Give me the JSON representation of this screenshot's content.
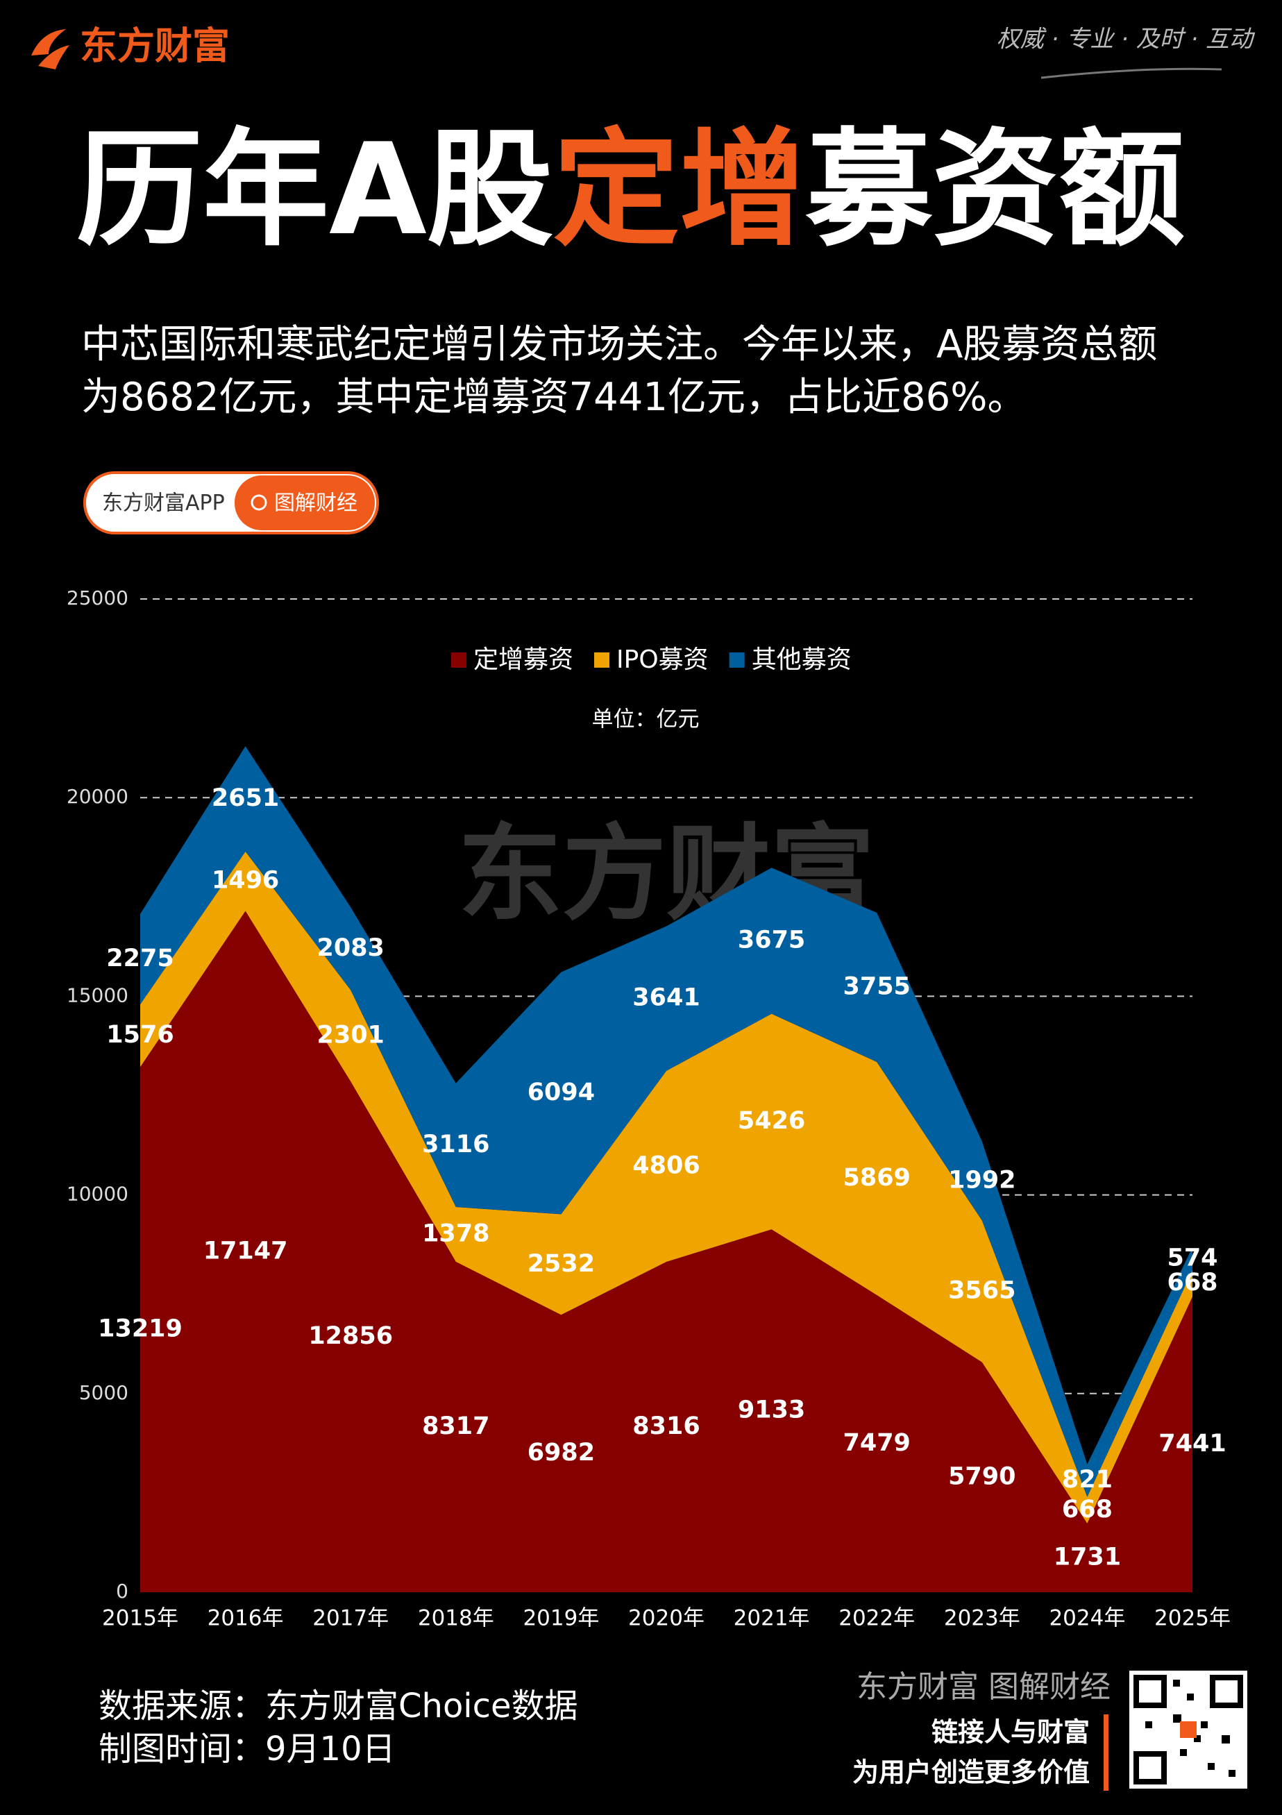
{
  "header": {
    "brand": "东方财富",
    "slogan": "权威 · 专业 · 及时 · 互动",
    "title_parts": [
      "历年A股",
      "定增",
      "募资额"
    ],
    "subtitle_lines": [
      "中芯国际和寒武纪定增引发市场关注。今年以来，A股募资总额",
      "为8682亿元，其中定增募资7441亿元，占比近86%。"
    ],
    "search": {
      "app": "东方财富APP",
      "query": "图解财经"
    }
  },
  "chart_data": {
    "type": "stacked-area",
    "subtitle": "单位：亿元",
    "watermark": "东方财富",
    "categories": [
      "2015年",
      "2016年",
      "2017年",
      "2018年",
      "2019年",
      "2020年",
      "2021年",
      "2022年",
      "2023年",
      "2024年",
      "2025年"
    ],
    "series": [
      {
        "name": "定增募资",
        "color": "#870000",
        "values": [
          13219,
          17147,
          12856,
          8317,
          6982,
          8316,
          9133,
          7479,
          5790,
          1731,
          7441
        ]
      },
      {
        "name": "IPO募资",
        "color": "#f0a400",
        "values": [
          1576,
          1496,
          2301,
          1378,
          2532,
          4806,
          5426,
          5869,
          3565,
          668,
          668
        ]
      },
      {
        "name": "其他募资",
        "color": "#005f9e",
        "values": [
          2275,
          2651,
          2083,
          3116,
          6094,
          3641,
          3675,
          3755,
          1992,
          821,
          574
        ]
      }
    ],
    "ylim": [
      0,
      25000
    ],
    "yticks": [
      0,
      5000,
      10000,
      15000,
      20000,
      25000
    ],
    "grid": true
  },
  "footer": {
    "source": "数据来源：东方财富Choice数据",
    "date": "制图时间：9月10日",
    "brand": "东方财富 图解财经",
    "slogan1": "链接人与财富",
    "slogan2": "为用户创造更多价值"
  }
}
